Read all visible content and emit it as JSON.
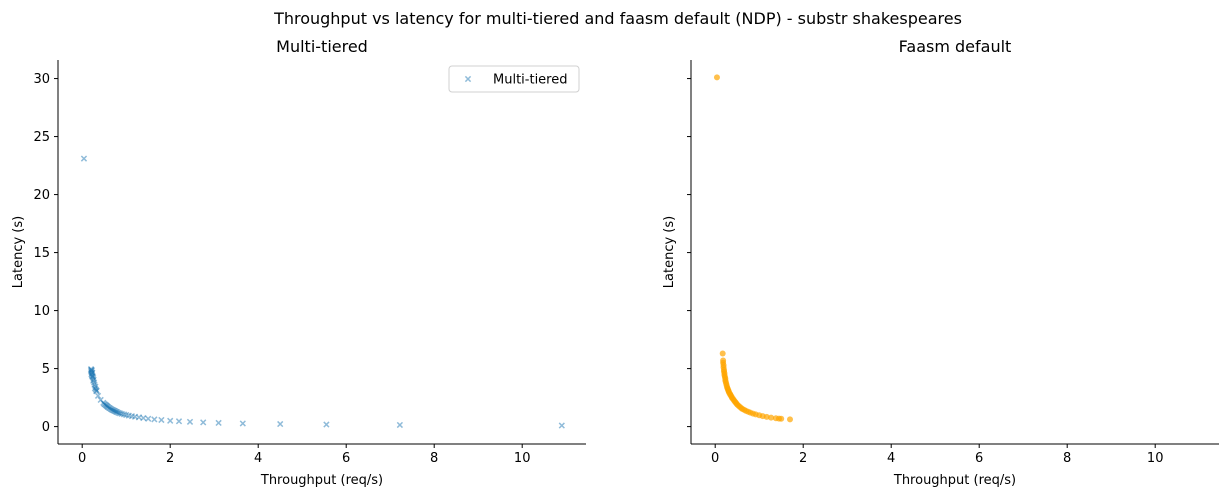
{
  "figure": {
    "suptitle": "Throughput vs latency for multi-tiered and faasm default (NDP) - substr shakespeares"
  },
  "chart_data": [
    {
      "type": "scatter",
      "title": "Multi-tiered",
      "xlabel": "Throughput (req/s)",
      "ylabel": "Latency (s)",
      "xlim": [
        -0.55,
        11.45
      ],
      "ylim": [
        -1.5,
        31.6
      ],
      "xticks": [
        0,
        2,
        4,
        6,
        8,
        10
      ],
      "yticks": [
        0,
        5,
        10,
        15,
        20,
        25,
        30
      ],
      "grid": false,
      "legend": {
        "position": "top-right",
        "entries": [
          "Multi-tiered"
        ]
      },
      "series": [
        {
          "name": "Multi-tiered",
          "marker": "x",
          "color": "#1f77b4",
          "alpha": 0.5,
          "x": [
            0.04,
            0.2,
            0.21,
            0.22,
            0.2,
            0.21,
            0.23,
            0.22,
            0.21,
            0.22,
            0.24,
            0.23,
            0.25,
            0.26,
            0.25,
            0.27,
            0.28,
            0.3,
            0.29,
            0.31,
            0.33,
            0.32,
            0.36,
            0.42,
            0.48,
            0.5,
            0.52,
            0.54,
            0.55,
            0.57,
            0.58,
            0.6,
            0.62,
            0.64,
            0.66,
            0.68,
            0.7,
            0.72,
            0.74,
            0.76,
            0.78,
            0.8,
            0.83,
            0.86,
            0.9,
            0.95,
            1.0,
            1.06,
            1.13,
            1.2,
            1.29,
            1.39,
            1.5,
            1.64,
            1.8,
            2.0,
            2.2,
            2.45,
            2.75,
            3.1,
            3.65,
            4.5,
            5.55,
            7.22,
            10.9
          ],
          "y": [
            23.1,
            4.95,
            4.9,
            4.85,
            4.8,
            4.7,
            4.65,
            4.6,
            4.5,
            4.4,
            4.35,
            4.3,
            4.2,
            4.05,
            3.95,
            3.8,
            3.6,
            3.45,
            3.3,
            3.2,
            3.1,
            3.05,
            2.65,
            2.3,
            2.05,
            1.95,
            1.9,
            1.85,
            1.8,
            1.75,
            1.7,
            1.65,
            1.6,
            1.55,
            1.5,
            1.45,
            1.42,
            1.38,
            1.35,
            1.3,
            1.27,
            1.23,
            1.18,
            1.14,
            1.1,
            1.05,
            1.0,
            0.95,
            0.9,
            0.85,
            0.8,
            0.74,
            0.68,
            0.62,
            0.57,
            0.5,
            0.46,
            0.41,
            0.36,
            0.32,
            0.27,
            0.22,
            0.18,
            0.14,
            0.09
          ]
        }
      ]
    },
    {
      "type": "scatter",
      "title": "Faasm default",
      "xlabel": "Throughput (req/s)",
      "ylabel": "Latency (s)",
      "xlim": [
        -0.55,
        11.45
      ],
      "ylim": [
        -1.5,
        31.6
      ],
      "xticks": [
        0,
        2,
        4,
        6,
        8,
        10
      ],
      "yticks": [
        0,
        5,
        10,
        15,
        20,
        25,
        30
      ],
      "grid": false,
      "legend": null,
      "series": [
        {
          "marker": "o",
          "color": "#ffa500",
          "alpha": 0.7,
          "x": [
            0.04,
            0.17,
            0.18,
            0.18,
            0.19,
            0.19,
            0.2,
            0.2,
            0.21,
            0.21,
            0.22,
            0.23,
            0.23,
            0.24,
            0.25,
            0.26,
            0.27,
            0.28,
            0.29,
            0.3,
            0.31,
            0.32,
            0.34,
            0.35,
            0.37,
            0.38,
            0.4,
            0.42,
            0.44,
            0.46,
            0.48,
            0.5,
            0.53,
            0.56,
            0.59,
            0.62,
            0.66,
            0.7,
            0.75,
            0.8,
            0.86,
            0.92,
            1.0,
            1.08,
            1.17,
            1.27,
            1.38,
            1.45,
            1.5,
            1.7
          ],
          "y": [
            30.1,
            6.3,
            5.7,
            5.5,
            5.3,
            5.1,
            4.9,
            4.75,
            4.6,
            4.45,
            4.3,
            4.15,
            4.0,
            3.85,
            3.7,
            3.55,
            3.4,
            3.3,
            3.2,
            3.1,
            3.0,
            2.9,
            2.8,
            2.7,
            2.6,
            2.5,
            2.4,
            2.3,
            2.2,
            2.1,
            2.0,
            1.9,
            1.8,
            1.7,
            1.6,
            1.52,
            1.44,
            1.36,
            1.28,
            1.2,
            1.12,
            1.05,
            0.98,
            0.9,
            0.84,
            0.77,
            0.72,
            0.69,
            0.68,
            0.62
          ]
        }
      ]
    }
  ]
}
